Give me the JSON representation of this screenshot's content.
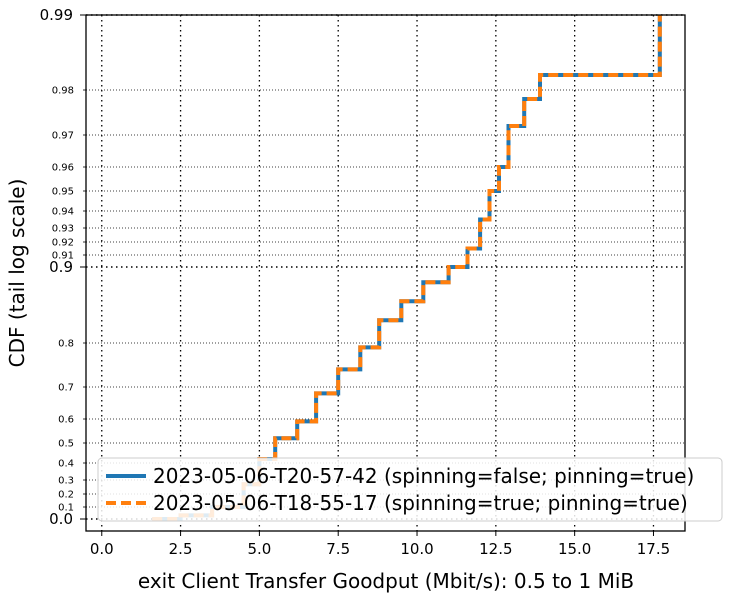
{
  "chart_data": {
    "type": "line",
    "title": "",
    "xlabel": "exit Client Transfer Goodput (Mbit/s): 0.5 to 1 MiB",
    "ylabel": "CDF (tail log scale)",
    "xlim": [
      -0.5,
      18.5
    ],
    "ylim": [
      0.0,
      0.99
    ],
    "y_scale": "tail log (logit-like) above 0.9, linear below",
    "grid": true,
    "legend_position": "bottom-right",
    "x_ticks": [
      "0.0",
      "2.5",
      "5.0",
      "7.5",
      "10.0",
      "12.5",
      "15.0",
      "17.5"
    ],
    "x_tick_values": [
      0,
      2.5,
      5,
      7.5,
      10,
      12.5,
      15,
      17.5
    ],
    "y_ticks_major": [
      {
        "value": 0.0,
        "label": "0.0"
      },
      {
        "value": 0.9,
        "label": "0.9"
      },
      {
        "value": 0.99,
        "label": "0.99"
      }
    ],
    "y_ticks_minor": [
      {
        "value": 0.1,
        "label": "0.1"
      },
      {
        "value": 0.2,
        "label": "0.2"
      },
      {
        "value": 0.3,
        "label": "0.3"
      },
      {
        "value": 0.4,
        "label": "0.4"
      },
      {
        "value": 0.5,
        "label": "0.5"
      },
      {
        "value": 0.6,
        "label": "0.6"
      },
      {
        "value": 0.7,
        "label": "0.7"
      },
      {
        "value": 0.8,
        "label": "0.8"
      },
      {
        "value": 0.91,
        "label": "0.91"
      },
      {
        "value": 0.92,
        "label": "0.92"
      },
      {
        "value": 0.93,
        "label": "0.93"
      },
      {
        "value": 0.94,
        "label": "0.94"
      },
      {
        "value": 0.95,
        "label": "0.95"
      },
      {
        "value": 0.96,
        "label": "0.96"
      },
      {
        "value": 0.97,
        "label": "0.97"
      },
      {
        "value": 0.98,
        "label": "0.98"
      }
    ],
    "series": [
      {
        "name": "2023-05-06-T20-57-42 (spinning=false; pinning=true)",
        "color": "#1f77b4",
        "style": "solid",
        "x": [
          1.6,
          2.5,
          3.5,
          4.5,
          5.0,
          5.5,
          6.2,
          6.8,
          7.5,
          8.2,
          8.8,
          9.5,
          10.2,
          11.0,
          11.6,
          12.0,
          12.3,
          12.6,
          12.9,
          13.4,
          13.9,
          17.7
        ],
        "y": [
          0.0,
          0.03,
          0.1,
          0.27,
          0.42,
          0.52,
          0.59,
          0.68,
          0.74,
          0.79,
          0.83,
          0.855,
          0.88,
          0.9,
          0.915,
          0.935,
          0.95,
          0.96,
          0.972,
          0.978,
          0.982,
          0.99
        ]
      },
      {
        "name": "2023-05-06-T18-55-17 (spinning=true; pinning=true)",
        "color": "#ff7f0e",
        "style": "dashed",
        "x": [
          1.6,
          2.5,
          3.5,
          4.5,
          5.0,
          5.5,
          6.2,
          6.8,
          7.5,
          8.2,
          8.8,
          9.5,
          10.2,
          11.0,
          11.6,
          12.0,
          12.3,
          12.6,
          12.9,
          13.4,
          13.9,
          17.7
        ],
        "y": [
          0.0,
          0.03,
          0.1,
          0.27,
          0.42,
          0.52,
          0.59,
          0.68,
          0.74,
          0.79,
          0.83,
          0.855,
          0.88,
          0.9,
          0.915,
          0.935,
          0.95,
          0.96,
          0.972,
          0.978,
          0.982,
          0.99
        ]
      }
    ]
  }
}
